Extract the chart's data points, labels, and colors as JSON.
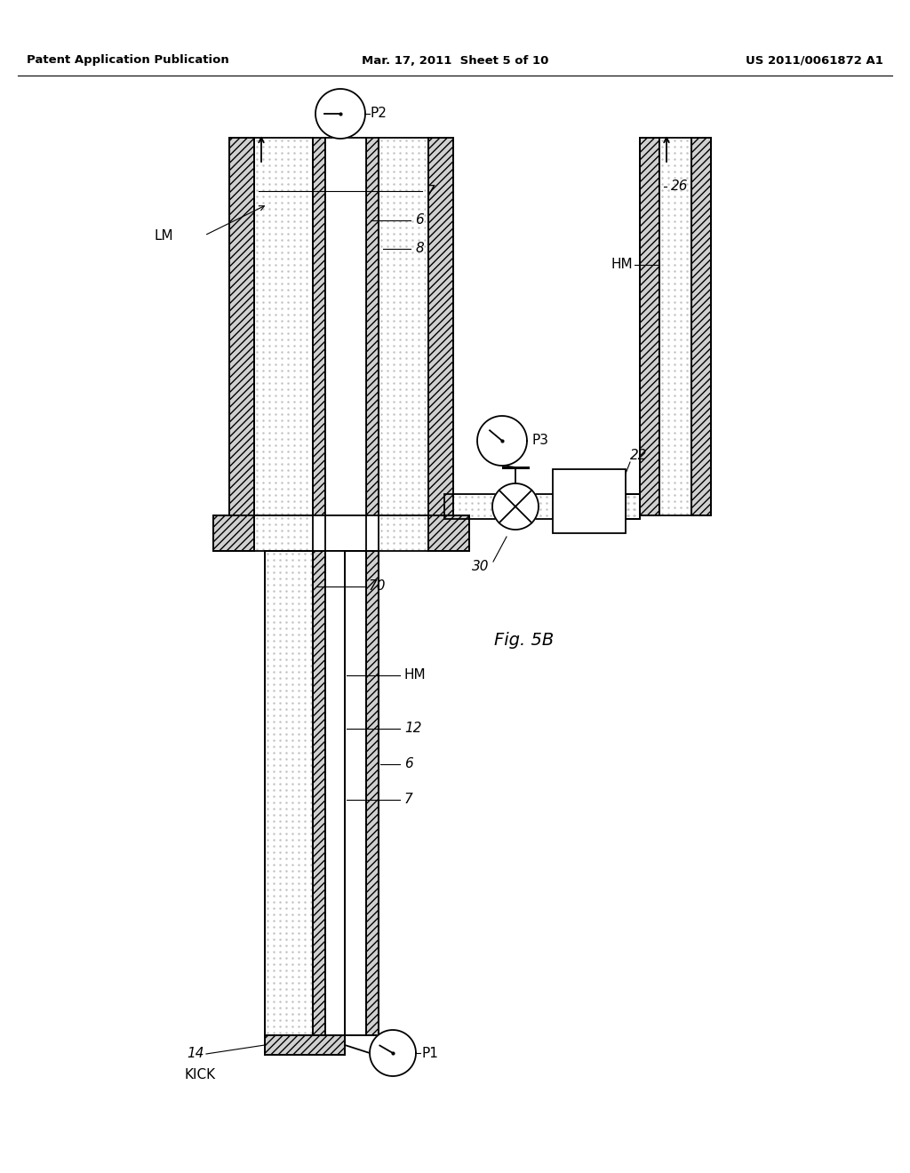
{
  "bg_color": "#ffffff",
  "header_left": "Patent Application Publication",
  "header_mid": "Mar. 17, 2011  Sheet 5 of 10",
  "header_right": "US 2011/0061872 A1",
  "fig_label": "Fig. 5B",
  "line_color": "#000000",
  "dot_color": "#bbbbbb",
  "hatch_color": "#aaaaaa"
}
